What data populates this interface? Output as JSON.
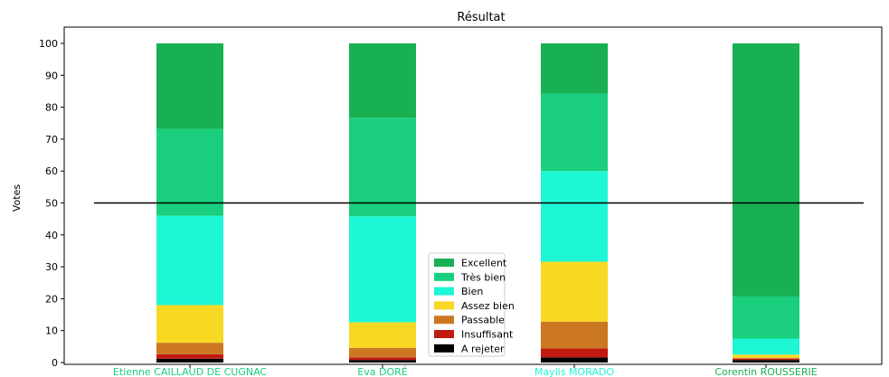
{
  "chart_data": {
    "type": "bar",
    "stacked": true,
    "title": "Résultat",
    "xlabel": "",
    "ylabel": "Votes",
    "ylim": [
      0,
      100
    ],
    "yticks": [
      0,
      10,
      20,
      30,
      40,
      50,
      60,
      70,
      80,
      90,
      100
    ],
    "grid": false,
    "reference_line": {
      "y": 50,
      "color": "#000000"
    },
    "categories": [
      "Etienne CAILLAUD DE CUGNAC",
      "Eva DORÉ",
      "Maylis MORADO",
      "Corentin ROUSSERIE"
    ],
    "category_colors": [
      "#19cf7d",
      "#19cf7d",
      "#1ef7d6",
      "#18b052"
    ],
    "legend": {
      "position": "lower-center"
    },
    "series": [
      {
        "name": "A rejeter",
        "color": "#000000",
        "values": [
          1.2,
          0.8,
          1.6,
          0.8
        ]
      },
      {
        "name": "Insuffisant",
        "color": "#c11a10",
        "values": [
          1.4,
          0.8,
          2.8,
          0.4
        ]
      },
      {
        "name": "Passable",
        "color": "#cc7722",
        "values": [
          3.6,
          3.0,
          8.4,
          0.3
        ]
      },
      {
        "name": "Assez bien",
        "color": "#f7d924",
        "values": [
          11.8,
          8.0,
          18.8,
          1.0
        ]
      },
      {
        "name": "Bien",
        "color": "#1ef7d6",
        "values": [
          28.0,
          33.2,
          28.4,
          5.0
        ]
      },
      {
        "name": "Très bien",
        "color": "#19cf7d",
        "values": [
          27.2,
          30.9,
          24.3,
          13.2
        ]
      },
      {
        "name": "Excellent",
        "color": "#18b052",
        "values": [
          26.8,
          23.3,
          15.7,
          79.3
        ]
      }
    ]
  }
}
